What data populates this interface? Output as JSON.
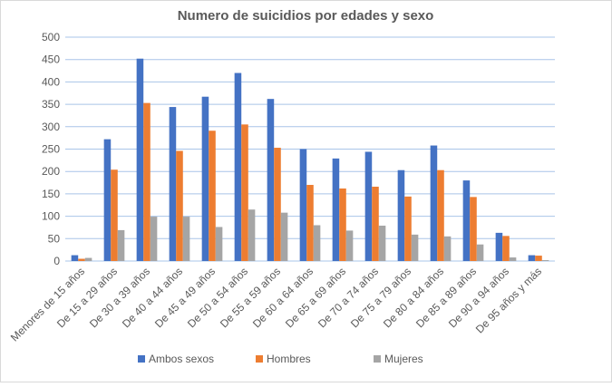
{
  "chart_data": {
    "type": "bar",
    "title": "Numero de suicidios por edades y sexo",
    "categories": [
      "Menores de 15 años",
      "De 15 a 29 años",
      "De 30 a 39 años",
      "De 40 a 44 años",
      "De 45 a 49 años",
      "De 50 a 54 años",
      "De 55 a 59 años",
      "De 60 a 64 años",
      "De 65 a 69 años",
      "De 70 a 74 años",
      "De 75 a 79 años",
      "De 80 a 84 años",
      "De 85 a 89 años",
      "De 90 a 94 años",
      "De 95 años y más"
    ],
    "series": [
      {
        "name": "Ambos sexos",
        "color": "#4472c4",
        "values": [
          13,
          272,
          452,
          344,
          367,
          420,
          362,
          250,
          229,
          244,
          203,
          258,
          180,
          63,
          13
        ]
      },
      {
        "name": "Hombres",
        "color": "#ed7d31",
        "values": [
          5,
          204,
          353,
          246,
          291,
          305,
          253,
          170,
          162,
          166,
          144,
          203,
          143,
          56,
          12
        ]
      },
      {
        "name": "Mujeres",
        "color": "#a5a5a5",
        "values": [
          7,
          69,
          99,
          99,
          76,
          115,
          108,
          80,
          68,
          79,
          59,
          55,
          37,
          8,
          2
        ]
      }
    ],
    "ylim": [
      0,
      500
    ],
    "yticks": [
      0,
      50,
      100,
      150,
      200,
      250,
      300,
      350,
      400,
      450,
      500
    ],
    "grid": true,
    "legend": "bottom"
  }
}
